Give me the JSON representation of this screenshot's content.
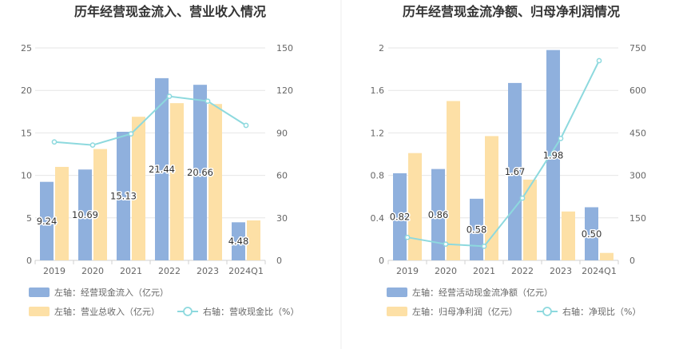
{
  "chart_data": [
    {
      "type": "bar",
      "title": "历年经营现金流入、营业收入情况",
      "categories": [
        "2019",
        "2020",
        "2021",
        "2022",
        "2023",
        "2024Q1"
      ],
      "left_axis": {
        "ylim": [
          0,
          25
        ],
        "ticks": [
          "0",
          "5",
          "10",
          "15",
          "20",
          "25"
        ]
      },
      "right_axis": {
        "ylim": [
          0,
          150
        ],
        "ticks": [
          "0",
          "30",
          "60",
          "90",
          "120",
          "150"
        ]
      },
      "series": [
        {
          "name": "左轴：经营现金流入（亿元）",
          "kind": "bar",
          "axis": "left",
          "color": "#8fb0dd",
          "values": [
            9.24,
            10.69,
            15.13,
            21.44,
            20.66,
            4.48
          ],
          "labels": [
            "9.24",
            "10.69",
            "15.13",
            "21.44",
            "20.66",
            "4.48"
          ]
        },
        {
          "name": "左轴：营业总收入（亿元）",
          "kind": "bar",
          "axis": "left",
          "color": "#fde0a6",
          "values": [
            11.0,
            13.1,
            16.9,
            18.5,
            18.4,
            4.7
          ]
        },
        {
          "name": "右轴：营收现金比（%）",
          "kind": "line",
          "axis": "right",
          "color": "#8dd9de",
          "values": [
            83.6,
            81.4,
            89.3,
            115.8,
            112.4,
            95.3
          ]
        }
      ],
      "legend": {
        "position": "bottom"
      }
    },
    {
      "type": "bar",
      "title": "历年经营现金流净额、归母净利润情况",
      "categories": [
        "2019",
        "2020",
        "2021",
        "2022",
        "2023",
        "2024Q1"
      ],
      "left_axis": {
        "ylim": [
          0,
          2
        ],
        "ticks": [
          "0",
          "0.4",
          "0.8",
          "1.2",
          "1.6",
          "2"
        ]
      },
      "right_axis": {
        "ylim": [
          0,
          750
        ],
        "ticks": [
          "0",
          "150",
          "300",
          "450",
          "600",
          "750"
        ]
      },
      "series": [
        {
          "name": "左轴：经营活动现金流净额（亿元）",
          "kind": "bar",
          "axis": "left",
          "color": "#8fb0dd",
          "values": [
            0.82,
            0.86,
            0.58,
            1.67,
            1.98,
            0.5
          ],
          "labels": [
            "0.82",
            "0.86",
            "0.58",
            "1.67",
            "1.98",
            "0.50"
          ]
        },
        {
          "name": "左轴：归母净利润（亿元）",
          "kind": "bar",
          "axis": "left",
          "color": "#fde0a6",
          "values": [
            1.01,
            1.5,
            1.17,
            0.76,
            0.46,
            0.07
          ]
        },
        {
          "name": "右轴：净现比（%）",
          "kind": "line",
          "axis": "right",
          "color": "#8dd9de",
          "values": [
            81.2,
            57.3,
            49.6,
            219.7,
            430.4,
            705.0
          ]
        }
      ],
      "legend": {
        "position": "bottom"
      }
    }
  ]
}
